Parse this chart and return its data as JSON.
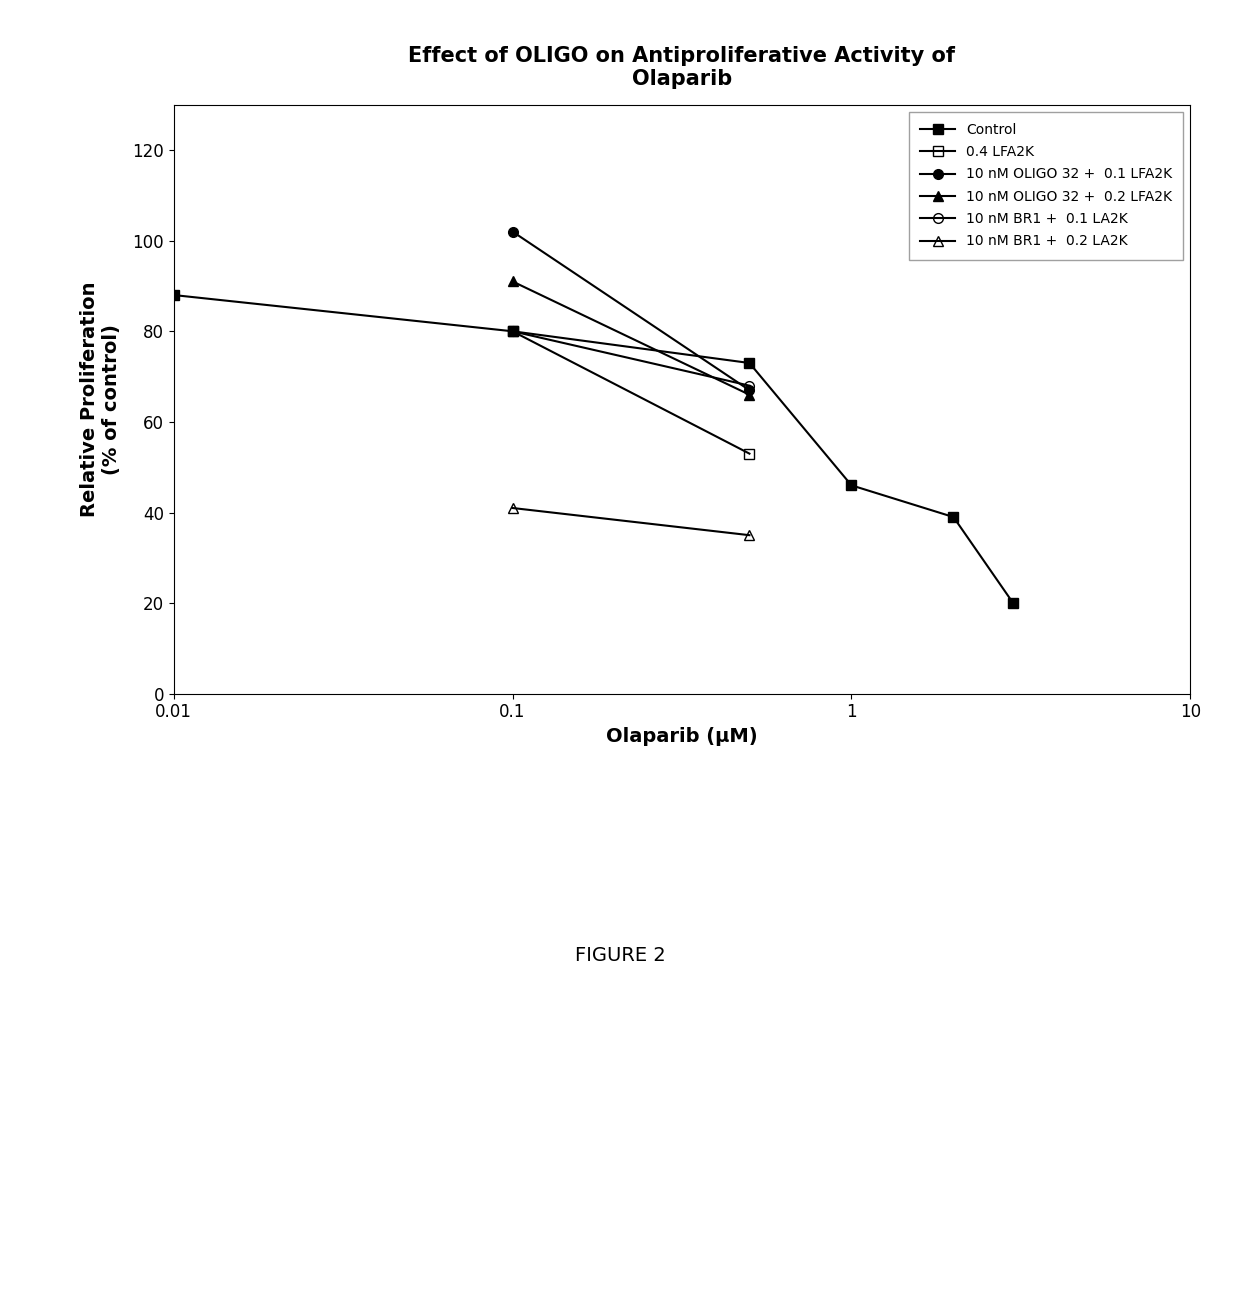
{
  "title": "Effect of OLIGO on Antiproliferative Activity of\nOlaparib",
  "xlabel": "Olaparib (μM)",
  "ylabel": "Relative Proliferation\n(% of control)",
  "xlim": [
    0.01,
    10
  ],
  "ylim": [
    0,
    130
  ],
  "yticks": [
    0,
    20,
    40,
    60,
    80,
    100,
    120
  ],
  "series": [
    {
      "label": "Control",
      "x": [
        0.01,
        0.1,
        0.5,
        1.0,
        2.0,
        3.0
      ],
      "y": [
        88,
        80,
        73,
        46,
        39,
        20
      ],
      "marker": "s",
      "fillstyle": "full",
      "color": "#000000",
      "linewidth": 1.5,
      "markersize": 7
    },
    {
      "label": "0.4 LFA2K",
      "x": [
        0.1,
        0.5
      ],
      "y": [
        80,
        53
      ],
      "marker": "s",
      "fillstyle": "none",
      "color": "#000000",
      "linewidth": 1.5,
      "markersize": 7
    },
    {
      "label": "10 nM OLIGO 32 +  0.1 LFA2K",
      "x": [
        0.1,
        0.5
      ],
      "y": [
        102,
        67
      ],
      "marker": "o",
      "fillstyle": "full",
      "color": "#000000",
      "linewidth": 1.5,
      "markersize": 7
    },
    {
      "label": "10 nM OLIGO 32 +  0.2 LFA2K",
      "x": [
        0.1,
        0.5
      ],
      "y": [
        91,
        66
      ],
      "marker": "^",
      "fillstyle": "full",
      "color": "#000000",
      "linewidth": 1.5,
      "markersize": 7
    },
    {
      "label": "10 nM BR1 +  0.1 LA2K",
      "x": [
        0.1,
        0.5
      ],
      "y": [
        80,
        68
      ],
      "marker": "o",
      "fillstyle": "none",
      "color": "#000000",
      "linewidth": 1.5,
      "markersize": 7
    },
    {
      "label": "10 nM BR1 +  0.2 LA2K",
      "x": [
        0.1,
        0.5
      ],
      "y": [
        41,
        35
      ],
      "marker": "^",
      "fillstyle": "none",
      "color": "#000000",
      "linewidth": 1.5,
      "markersize": 7
    }
  ],
  "figure_caption": "FIGURE 2",
  "background_color": "#ffffff",
  "title_fontsize": 15,
  "axis_fontsize": 14,
  "tick_fontsize": 12,
  "legend_fontsize": 10
}
